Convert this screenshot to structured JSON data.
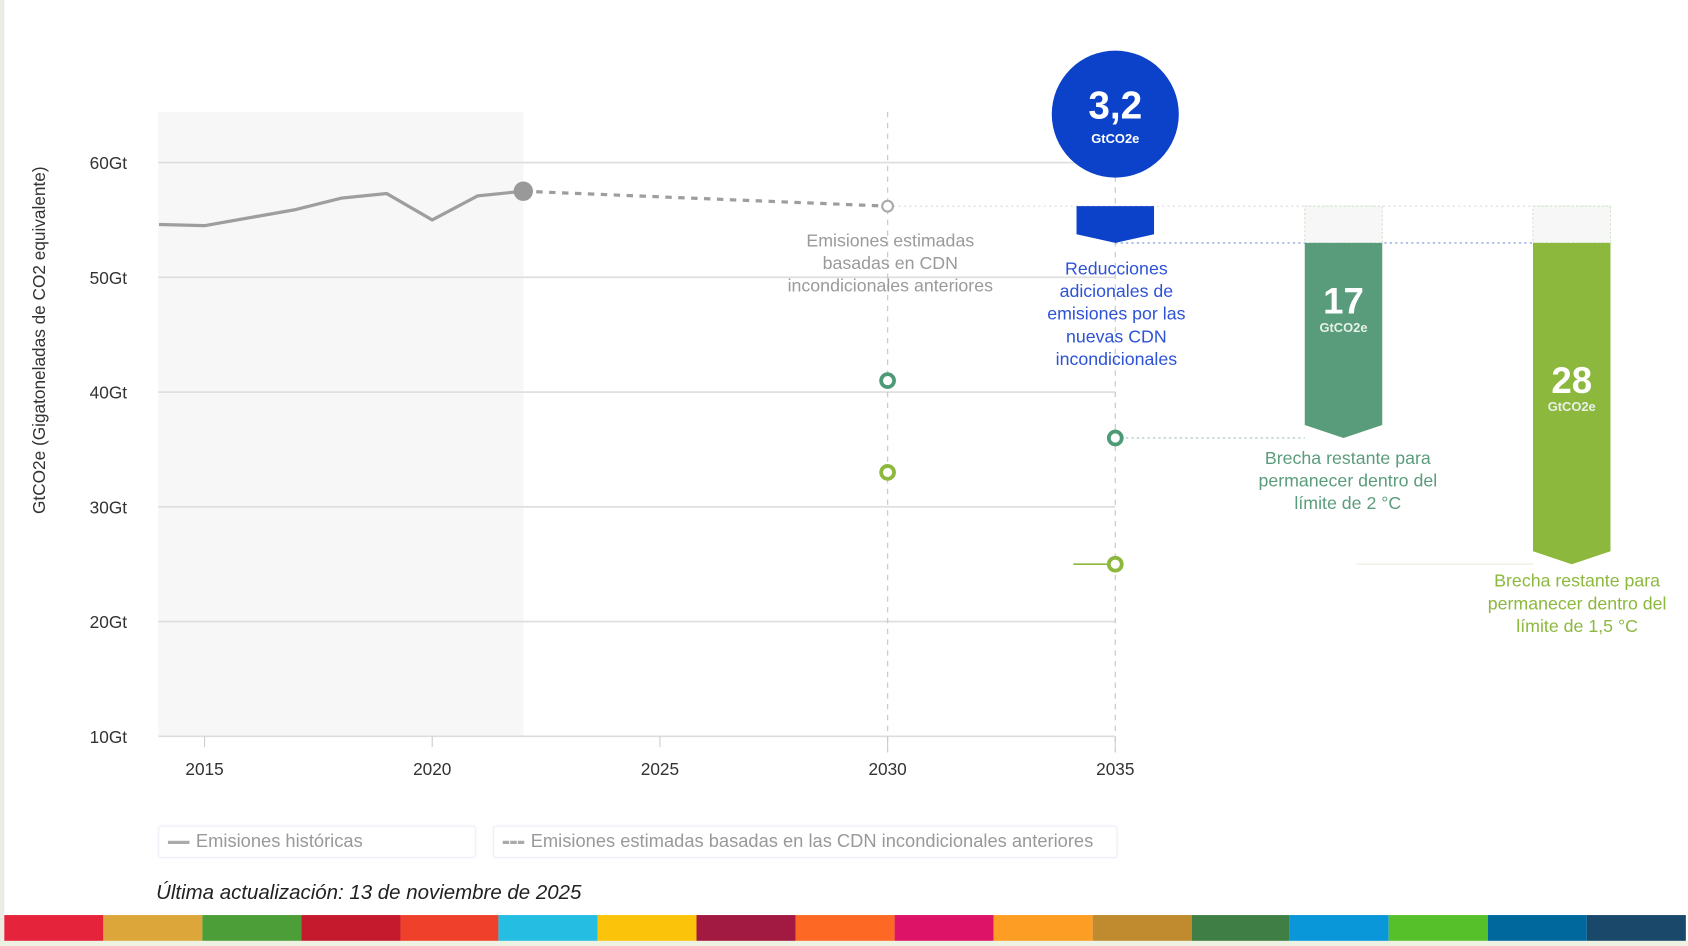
{
  "chart_data": {
    "type": "line",
    "ylabel": "GtCO2e (Gigatoneladas de CO2 equivalente)",
    "y_ticks": [
      "10Gt",
      "20Gt",
      "30Gt",
      "40Gt",
      "50Gt",
      "60Gt"
    ],
    "y_tick_values": [
      10,
      20,
      30,
      40,
      50,
      60
    ],
    "x_ticks": [
      "2015",
      "2020",
      "2025",
      "2030",
      "2035"
    ],
    "x_tick_values": [
      2015,
      2020,
      2025,
      2030,
      2035
    ],
    "xlim": [
      2014,
      2035
    ],
    "ylim": [
      10,
      64
    ],
    "grid": true,
    "series": [
      {
        "name": "Emisiones históricas",
        "style": "solid",
        "color": "#9e9e9e",
        "x": [
          2014,
          2015,
          2016,
          2017,
          2018,
          2019,
          2020,
          2021,
          2022
        ],
        "y": [
          54.6,
          54.5,
          55.2,
          55.9,
          56.9,
          57.3,
          55.0,
          57.1,
          57.5
        ]
      },
      {
        "name": "Emisiones estimadas basadas en las CDN incondicionales anteriores",
        "style": "dashed",
        "color": "#9e9e9e",
        "x": [
          2022,
          2030
        ],
        "y": [
          57.5,
          56.2
        ]
      }
    ],
    "points": [
      {
        "x": 2030,
        "y": 41,
        "color": "#4e9a76"
      },
      {
        "x": 2030,
        "y": 33,
        "color": "#8db83d"
      },
      {
        "x": 2035,
        "y": 36,
        "color": "#4e9a76"
      },
      {
        "x": 2035,
        "y": 25,
        "color": "#8db83d"
      }
    ],
    "reduction": {
      "x": 2035,
      "from": 56.2,
      "to": 53.0,
      "value": "3,2",
      "unit": "GtCO2e",
      "color": "#0b42c9",
      "label": "Reducciones adicionales de emisiones por las nuevas CDN incondicionales"
    },
    "gaps": [
      {
        "value": "17",
        "unit": "GtCO2e",
        "from": 53.0,
        "to": 36,
        "color": "#589c7b",
        "label": "Brecha restante para permanecer dentro del límite de 2 °C"
      },
      {
        "value": "28",
        "unit": "GtCO2e",
        "from": 53.0,
        "to": 25,
        "color": "#8cb83e",
        "label": "Brecha restante para permanecer dentro del límite de 1,5 °C"
      }
    ],
    "annotation_2030": "Emisiones estimadas basadas en CDN incondicionales anteriores",
    "historical_shading": [
      2014,
      2022
    ]
  },
  "legend": [
    {
      "label": "Emisiones históricas",
      "style": "solid"
    },
    {
      "label": "Emisiones estimadas basadas en las CDN incondicionales anteriores",
      "style": "dashed"
    }
  ],
  "footer": "Última actualización: 13 de noviembre de 2025",
  "sdg_colors": [
    "#e5243b",
    "#dda63a",
    "#4c9f38",
    "#c5192d",
    "#ef402b",
    "#26bde2",
    "#fcc30b",
    "#a21942",
    "#fd6925",
    "#dd1367",
    "#fd9d24",
    "#bf8b2e",
    "#3f7e44",
    "#0a97d9",
    "#56c02b",
    "#00689d",
    "#19486a"
  ]
}
